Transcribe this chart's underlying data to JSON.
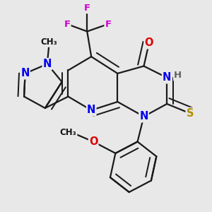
{
  "bg_color": "#e8e8e8",
  "bond_color": "#1a1a1a",
  "bond_width": 1.6,
  "dbl_sep": 0.09,
  "atom_colors": {
    "N": "#0000ee",
    "O": "#dd0000",
    "F": "#cc00cc",
    "S": "#b09000",
    "H": "#606060",
    "C": "#111111"
  },
  "fs": 10.5,
  "fss": 8.5,
  "figsize": [
    3.0,
    3.0
  ],
  "dpi": 100
}
